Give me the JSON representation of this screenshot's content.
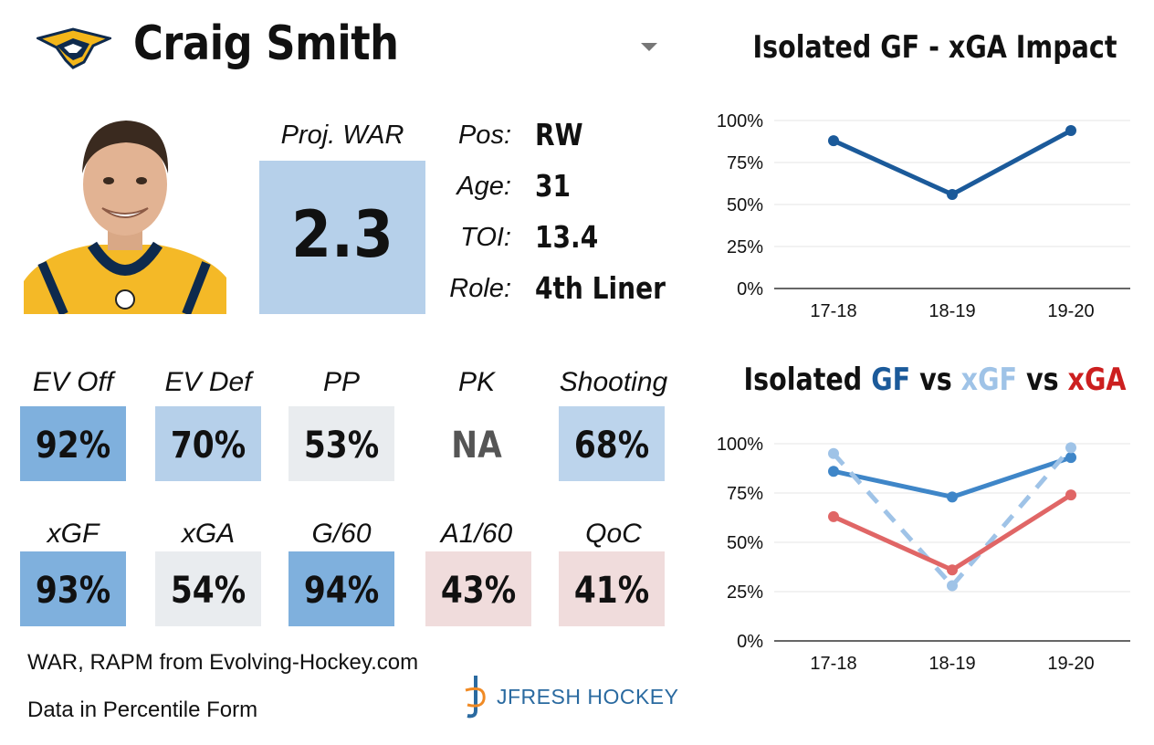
{
  "player": {
    "name": "Craig Smith",
    "proj_war_label": "Proj. WAR",
    "proj_war_value": "2.3",
    "info": [
      {
        "label": "Pos:",
        "value": "RW"
      },
      {
        "label": "Age:",
        "value": "31"
      },
      {
        "label": "TOI:",
        "value": "13.4"
      },
      {
        "label": "Role:",
        "value": "4th Liner"
      }
    ]
  },
  "stats_row1": [
    {
      "label": "EV Off",
      "value": "92%",
      "color": "#7fb0dd"
    },
    {
      "label": "EV Def",
      "value": "70%",
      "color": "#b6d0ea"
    },
    {
      "label": "PP",
      "value": "53%",
      "color": "#e9ecef"
    },
    {
      "label": "PK",
      "value": "NA",
      "color": "#ffffff"
    },
    {
      "label": "Shooting",
      "value": "68%",
      "color": "#bcd4ec"
    }
  ],
  "stats_row2": [
    {
      "label": "xGF",
      "value": "93%",
      "color": "#7fb0dd"
    },
    {
      "label": "xGA",
      "value": "54%",
      "color": "#e9ecef"
    },
    {
      "label": "G/60",
      "value": "94%",
      "color": "#7fb0dd"
    },
    {
      "label": "A1/60",
      "value": "43%",
      "color": "#f0dcdc"
    },
    {
      "label": "QoC",
      "value": "41%",
      "color": "#f0dcdc"
    }
  ],
  "footer": {
    "line1": "WAR, RAPM from  Evolving-Hockey.com",
    "line2": "Data in Percentile Form",
    "brand": "JFRESH HOCKEY"
  },
  "colors": {
    "navy": "#1b5a9a",
    "blue": "#3f86c8",
    "light_blue": "#9fc3e7",
    "red": "#e06666"
  },
  "chart_data": [
    {
      "type": "line",
      "title": "Isolated GF - xGA Impact",
      "x": [
        "17-18",
        "18-19",
        "19-20"
      ],
      "yticks": [
        "100%",
        "75%",
        "50%",
        "25%",
        "0%"
      ],
      "ylim": [
        0,
        100
      ],
      "grid": true,
      "series": [
        {
          "values": [
            88,
            56,
            94
          ],
          "color": "#1b5a9a",
          "dash": false
        }
      ]
    },
    {
      "type": "line",
      "title_parts": [
        {
          "text": "Isolated ",
          "color": "#111111"
        },
        {
          "text": "GF",
          "color": "#1b5a9a"
        },
        {
          "text": " vs ",
          "color": "#111111"
        },
        {
          "text": "xGF",
          "color": "#9fc3e7"
        },
        {
          "text": " vs ",
          "color": "#111111"
        },
        {
          "text": "xGA",
          "color": "#cc1f1f"
        }
      ],
      "x": [
        "17-18",
        "18-19",
        "19-20"
      ],
      "yticks": [
        "100%",
        "75%",
        "50%",
        "25%",
        "0%"
      ],
      "ylim": [
        0,
        100
      ],
      "grid": true,
      "series": [
        {
          "name": "GF",
          "values": [
            86,
            73,
            93
          ],
          "color": "#3f86c8",
          "dash": false
        },
        {
          "name": "xGF",
          "values": [
            95,
            28,
            98
          ],
          "color": "#9fc3e7",
          "dash": true
        },
        {
          "name": "xGA",
          "values": [
            63,
            36,
            74
          ],
          "color": "#e06666",
          "dash": false
        }
      ]
    }
  ]
}
